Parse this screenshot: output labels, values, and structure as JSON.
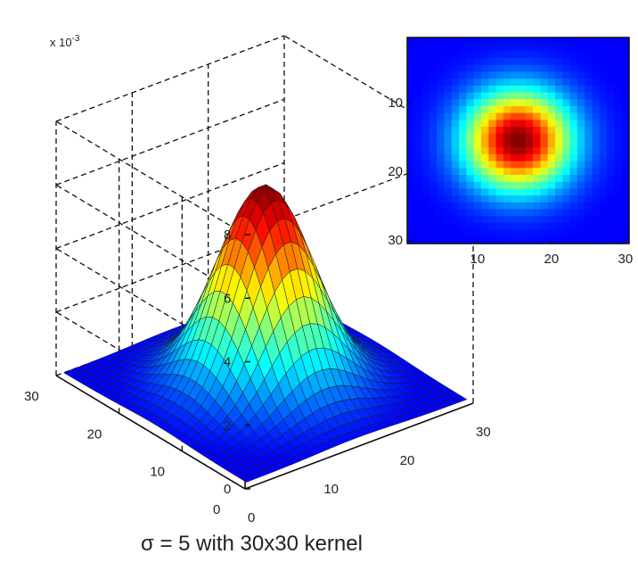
{
  "caption": "σ = 5 with 30x30 kernel",
  "chart_data": [
    {
      "type": "surface",
      "grid": 30,
      "sigma": 5,
      "center": 15.5,
      "z_multiplier_label": "x 10",
      "z_multiplier_exponent": "-3",
      "zlim": [
        0,
        8
      ],
      "z_ticks": [
        "0",
        "2",
        "4",
        "6",
        "8"
      ],
      "x_ticks": [
        "0",
        "10",
        "20",
        "30"
      ],
      "y_ticks": [
        "0",
        "10",
        "20",
        "30"
      ],
      "z_peak": 6.3,
      "colormap": "jet"
    },
    {
      "type": "heatmap",
      "grid": 30,
      "sigma": 5,
      "center": 15.5,
      "x_ticks": [
        "10",
        "20",
        "30"
      ],
      "y_ticks": [
        "10",
        "20",
        "30"
      ],
      "colormap": "jet"
    }
  ]
}
